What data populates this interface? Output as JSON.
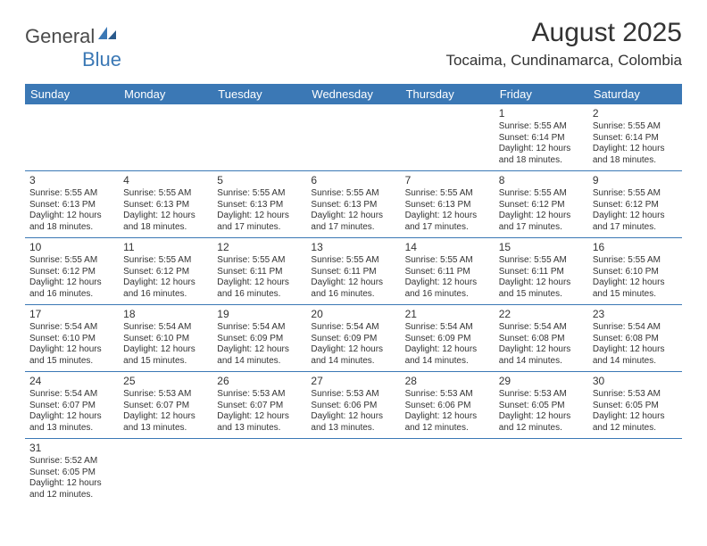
{
  "logo": {
    "word1": "General",
    "word2": "Blue"
  },
  "title": "August 2025",
  "location": "Tocaima, Cundinamarca, Colombia",
  "header_bg": "#3b78b5",
  "weekdays": [
    "Sunday",
    "Monday",
    "Tuesday",
    "Wednesday",
    "Thursday",
    "Friday",
    "Saturday"
  ],
  "rows": [
    [
      null,
      null,
      null,
      null,
      null,
      {
        "d": "1",
        "sr": "5:55 AM",
        "ss": "6:14 PM",
        "dl": "12 hours and 18 minutes."
      },
      {
        "d": "2",
        "sr": "5:55 AM",
        "ss": "6:14 PM",
        "dl": "12 hours and 18 minutes."
      }
    ],
    [
      {
        "d": "3",
        "sr": "5:55 AM",
        "ss": "6:13 PM",
        "dl": "12 hours and 18 minutes."
      },
      {
        "d": "4",
        "sr": "5:55 AM",
        "ss": "6:13 PM",
        "dl": "12 hours and 18 minutes."
      },
      {
        "d": "5",
        "sr": "5:55 AM",
        "ss": "6:13 PM",
        "dl": "12 hours and 17 minutes."
      },
      {
        "d": "6",
        "sr": "5:55 AM",
        "ss": "6:13 PM",
        "dl": "12 hours and 17 minutes."
      },
      {
        "d": "7",
        "sr": "5:55 AM",
        "ss": "6:13 PM",
        "dl": "12 hours and 17 minutes."
      },
      {
        "d": "8",
        "sr": "5:55 AM",
        "ss": "6:12 PM",
        "dl": "12 hours and 17 minutes."
      },
      {
        "d": "9",
        "sr": "5:55 AM",
        "ss": "6:12 PM",
        "dl": "12 hours and 17 minutes."
      }
    ],
    [
      {
        "d": "10",
        "sr": "5:55 AM",
        "ss": "6:12 PM",
        "dl": "12 hours and 16 minutes."
      },
      {
        "d": "11",
        "sr": "5:55 AM",
        "ss": "6:12 PM",
        "dl": "12 hours and 16 minutes."
      },
      {
        "d": "12",
        "sr": "5:55 AM",
        "ss": "6:11 PM",
        "dl": "12 hours and 16 minutes."
      },
      {
        "d": "13",
        "sr": "5:55 AM",
        "ss": "6:11 PM",
        "dl": "12 hours and 16 minutes."
      },
      {
        "d": "14",
        "sr": "5:55 AM",
        "ss": "6:11 PM",
        "dl": "12 hours and 16 minutes."
      },
      {
        "d": "15",
        "sr": "5:55 AM",
        "ss": "6:11 PM",
        "dl": "12 hours and 15 minutes."
      },
      {
        "d": "16",
        "sr": "5:55 AM",
        "ss": "6:10 PM",
        "dl": "12 hours and 15 minutes."
      }
    ],
    [
      {
        "d": "17",
        "sr": "5:54 AM",
        "ss": "6:10 PM",
        "dl": "12 hours and 15 minutes."
      },
      {
        "d": "18",
        "sr": "5:54 AM",
        "ss": "6:10 PM",
        "dl": "12 hours and 15 minutes."
      },
      {
        "d": "19",
        "sr": "5:54 AM",
        "ss": "6:09 PM",
        "dl": "12 hours and 14 minutes."
      },
      {
        "d": "20",
        "sr": "5:54 AM",
        "ss": "6:09 PM",
        "dl": "12 hours and 14 minutes."
      },
      {
        "d": "21",
        "sr": "5:54 AM",
        "ss": "6:09 PM",
        "dl": "12 hours and 14 minutes."
      },
      {
        "d": "22",
        "sr": "5:54 AM",
        "ss": "6:08 PM",
        "dl": "12 hours and 14 minutes."
      },
      {
        "d": "23",
        "sr": "5:54 AM",
        "ss": "6:08 PM",
        "dl": "12 hours and 14 minutes."
      }
    ],
    [
      {
        "d": "24",
        "sr": "5:54 AM",
        "ss": "6:07 PM",
        "dl": "12 hours and 13 minutes."
      },
      {
        "d": "25",
        "sr": "5:53 AM",
        "ss": "6:07 PM",
        "dl": "12 hours and 13 minutes."
      },
      {
        "d": "26",
        "sr": "5:53 AM",
        "ss": "6:07 PM",
        "dl": "12 hours and 13 minutes."
      },
      {
        "d": "27",
        "sr": "5:53 AM",
        "ss": "6:06 PM",
        "dl": "12 hours and 13 minutes."
      },
      {
        "d": "28",
        "sr": "5:53 AM",
        "ss": "6:06 PM",
        "dl": "12 hours and 12 minutes."
      },
      {
        "d": "29",
        "sr": "5:53 AM",
        "ss": "6:05 PM",
        "dl": "12 hours and 12 minutes."
      },
      {
        "d": "30",
        "sr": "5:53 AM",
        "ss": "6:05 PM",
        "dl": "12 hours and 12 minutes."
      }
    ],
    [
      {
        "d": "31",
        "sr": "5:52 AM",
        "ss": "6:05 PM",
        "dl": "12 hours and 12 minutes."
      },
      null,
      null,
      null,
      null,
      null,
      null
    ]
  ],
  "labels": {
    "sunrise": "Sunrise:",
    "sunset": "Sunset:",
    "daylight": "Daylight:"
  }
}
